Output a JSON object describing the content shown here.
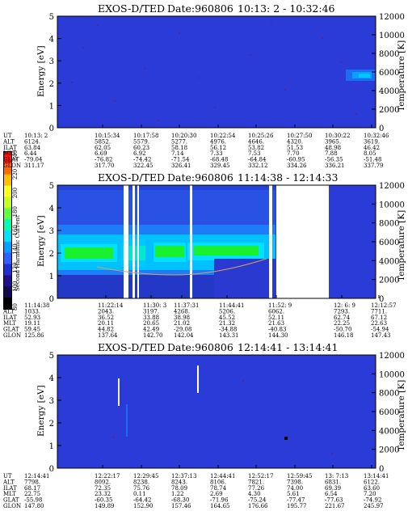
{
  "colors": {
    "background_field": "#2a3bd8",
    "band_cyan": "#00d0ff",
    "band_green": "#19f02e",
    "frame": "#000000",
    "trace": "#d9a05a"
  },
  "colorbar": {
    "label": "Second Harmonic Current",
    "ticks": [
      "240",
      "220",
      "200",
      "180",
      "160",
      "140",
      "120",
      "100",
      "80"
    ],
    "colors": [
      "#ff1010",
      "#ff6a00",
      "#ffc000",
      "#ffff20",
      "#c8ff20",
      "#60ff40",
      "#00ffb0",
      "#00e0ff",
      "#00a0ff",
      "#3060ff",
      "#2030d0",
      "#20108a",
      "#150850",
      "#000000"
    ]
  },
  "chart_data": [
    {
      "type": "heatmap",
      "title": "EXOS-D/TED",
      "date_label": "Date:960806",
      "time_range": "10:13: 2 - 10:32:46",
      "ylabel": "Energy [eV]",
      "y2label": "Temperature [K]",
      "ylim": [
        0,
        5
      ],
      "y2lim": [
        0,
        12000
      ],
      "yticks": [
        "0",
        "1",
        "2",
        "3",
        "4",
        "5"
      ],
      "y2ticks": [
        "0",
        "2000",
        "4000",
        "6000",
        "8000",
        "10000",
        "12000"
      ],
      "ephemeris": {
        "row_labels": [
          "UT",
          "ALT",
          "ILAT",
          "MLT",
          "GLAT",
          "GLON"
        ],
        "columns": [
          [
            "10:13: 2",
            "6124.",
            "63.84",
            "6.44",
            "-79.04",
            "311.17"
          ],
          [
            "10:15:34",
            "5852.",
            "62.05",
            "6.69",
            "-76.82",
            "317.70"
          ],
          [
            "10:17:58",
            "5579.",
            "60.23",
            "6.92",
            "-74.42",
            "322.45"
          ],
          [
            "10:20:30",
            "5277.",
            "58.18",
            "7.14",
            "-71.54",
            "326.41"
          ],
          [
            "10:22:54",
            "4976.",
            "56.12",
            "7.33",
            "-68.48",
            "329.45"
          ],
          [
            "10:25:26",
            "4646.",
            "53.82",
            "7.53",
            "-64.84",
            "332.12"
          ],
          [
            "10:27:50",
            "4320.",
            "51.53",
            "7.70",
            "-60.95",
            "334.26"
          ],
          [
            "10:30:22",
            "3965.",
            "48.98",
            "7.88",
            "-56.35",
            "336.21"
          ],
          [
            "10:32:46",
            "3619.",
            "46.42",
            "8.05",
            "-51.48",
            "337.79"
          ]
        ]
      }
    },
    {
      "type": "heatmap",
      "title": "EXOS-D/TED",
      "date_label": "Date:960806",
      "time_range": "11:14:38 - 12:14:33",
      "ylabel": "Energy [eV]",
      "y2label": "Temperature [K]",
      "ylim": [
        0,
        5
      ],
      "y2lim": [
        0,
        12000
      ],
      "yticks": [
        "0",
        "1",
        "2",
        "3",
        "4",
        "5"
      ],
      "y2ticks": [
        "0",
        "2000",
        "4000",
        "6000",
        "8000",
        "10000",
        "12000"
      ],
      "ephemeris": {
        "row_labels": [
          "UT",
          "ALT",
          "ILAT",
          "MLT",
          "GLAT",
          "GLON"
        ],
        "columns": [
          [
            "11:14:38",
            "1033.",
            "52.93",
            "19.11",
            "59.45",
            "125.86"
          ],
          [
            "11:22:14",
            "2043.",
            "36.52",
            "20.11",
            "44.82",
            "137.64"
          ],
          [
            "11:30: 3",
            "3197.",
            "33.88",
            "20.65",
            "42.49",
            "142.70"
          ],
          [
            "11:37:31",
            "4268.",
            "38.98",
            "21.02",
            "-29.08",
            "142.04"
          ],
          [
            "11:44:41",
            "5206.",
            "45.52",
            "21.32",
            "-34.88",
            "143.31"
          ],
          [
            "11:52: 9",
            "6062.",
            "52.11",
            "21.63",
            "-40.83",
            "144.30"
          ],
          [
            "12: 6: 9",
            "7293.",
            "62.74",
            "22.25",
            "-50.70",
            "146.18"
          ],
          [
            "12:12:57",
            "7711.",
            "67.12",
            "22.63",
            "-54.94",
            "147.43"
          ]
        ]
      }
    },
    {
      "type": "heatmap",
      "title": "EXOS-D/TED",
      "date_label": "Date:960806",
      "time_range": "12:14:41 - 13:14:41",
      "ylabel": "Energy [eV]",
      "y2label": "Temperature [K]",
      "ylim": [
        0,
        5
      ],
      "y2lim": [
        0,
        12000
      ],
      "yticks": [
        "0",
        "1",
        "2",
        "3",
        "4",
        "5"
      ],
      "y2ticks": [
        "0",
        "2000",
        "4000",
        "6000",
        "8000",
        "10000",
        "12000"
      ],
      "ephemeris": {
        "row_labels": [
          "UT",
          "ALT",
          "ILAT",
          "MLT",
          "GLAT",
          "GLON"
        ],
        "columns": [
          [
            "12:14:41",
            "7798.",
            "68.17",
            "22.75",
            "-55.98",
            "147.80"
          ],
          [
            "12:22:17",
            "8092.",
            "72.35",
            "23.32",
            "-60.35",
            "149.89"
          ],
          [
            "12:29:45",
            "8238.",
            "75.76",
            "0.11",
            "-64.42",
            "152.90"
          ],
          [
            "12:37:13",
            "8243.",
            "78.09",
            "1.22",
            "-68.30",
            "157.46"
          ],
          [
            "12:44:41",
            "8106.",
            "78.74",
            "2.69",
            "-71.96",
            "164.65"
          ],
          [
            "12:52:17",
            "7821.",
            "77.26",
            "4.30",
            "-75.24",
            "176.66"
          ],
          [
            "12:59:45",
            "7398.",
            "74.00",
            "5.61",
            "-77.47",
            "195.77"
          ],
          [
            "13: 7:13",
            "6831.",
            "69.39",
            "6.54",
            "-77.63",
            "221.67"
          ],
          [
            "13:14:41",
            "6122.",
            "63.60",
            "7.20",
            "-74.92",
            "245.97"
          ]
        ]
      }
    }
  ]
}
